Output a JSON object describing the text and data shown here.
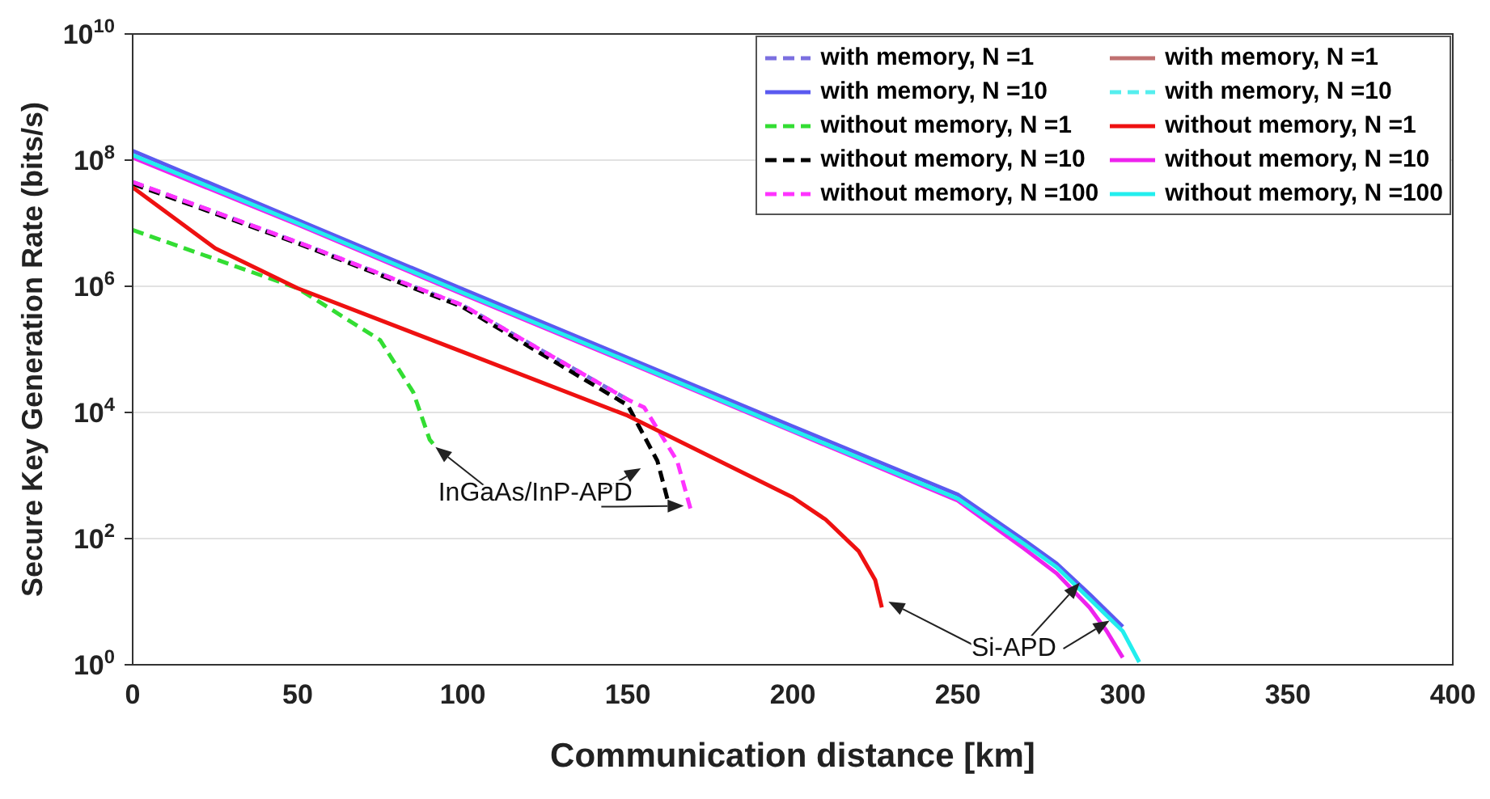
{
  "chart_data": {
    "type": "line",
    "xlabel": "Communication distance [km]",
    "ylabel": "Secure Key Generation Rate (bits/s)",
    "log": "y",
    "grid": true,
    "legend": "top right",
    "xlim": [
      0,
      400
    ],
    "xticks": [
      0,
      50,
      100,
      150,
      200,
      250,
      300,
      350,
      400
    ],
    "ylim": [
      1,
      10000000000
    ],
    "yticks": [
      {
        "value": 1,
        "label": "10$^{0}$"
      },
      {
        "value": 100,
        "label": "10$^{2}$"
      },
      {
        "value": 10000,
        "label": "10$^{4}$"
      },
      {
        "value": 1000000,
        "label": "10$^{6}$"
      },
      {
        "value": 100000000,
        "label": "10$^{8}$"
      },
      {
        "value": 10000000000,
        "label": "10$^{10}$"
      }
    ],
    "annotations": [
      {
        "text": "InGaAs/InP-APD",
        "x": 91,
        "y": 3200
      },
      {
        "text": "Si-APD",
        "x": 287,
        "y": 20
      }
    ],
    "series": [
      {
        "name": "with memory, N =1",
        "color": "#7b6fe0",
        "line_style": "dashed",
        "x": [
          0,
          50,
          100,
          150
        ],
        "values": [
          45000000,
          5000000,
          500000,
          16000
        ]
      },
      {
        "name": "with memory, N =10",
        "color": "#5a5af0",
        "line_style": "solid",
        "x": [
          0,
          100,
          200,
          250,
          270,
          280,
          290,
          300
        ],
        "values": [
          140000000,
          900000,
          6000,
          500,
          95,
          40,
          13,
          4
        ]
      },
      {
        "name": "without memory, N =1",
        "color": "#33dd33",
        "line_style": "dashed",
        "x": [
          0,
          25,
          50,
          75,
          85,
          90,
          91
        ],
        "values": [
          7800000,
          2700000,
          930000,
          140000,
          21000,
          3700,
          3200
        ]
      },
      {
        "name": "without memory, N =10",
        "color": "#000000",
        "line_style": "dashed",
        "x": [
          0,
          50,
          100,
          150,
          155,
          159,
          162
        ],
        "values": [
          42000000,
          4800000,
          470000,
          13000,
          4200,
          1700,
          430
        ]
      },
      {
        "name": "without memory, N =100",
        "color": "#ff33ff",
        "line_style": "dashed",
        "x": [
          0,
          50,
          100,
          150,
          155,
          165,
          169
        ],
        "values": [
          45000000,
          5000000,
          500000,
          16000,
          12000,
          1700,
          300
        ]
      },
      {
        "name": "with memory, N =1",
        "color": "#c07070",
        "line_style": "solid"
      },
      {
        "name": "with memory, N =10",
        "color": "#55eeee",
        "line_style": "dashed"
      },
      {
        "name": "without memory, N =1",
        "color": "#ee1111",
        "line_style": "solid",
        "x": [
          0,
          25,
          50,
          100,
          150,
          200,
          210,
          220,
          225,
          227
        ],
        "values": [
          37000000,
          4000000,
          930000,
          91000,
          8900,
          450,
          200,
          63,
          22,
          8.1
        ]
      },
      {
        "name": "without memory, N =10",
        "color": "#ee22ee",
        "line_style": "solid",
        "x": [
          0,
          50,
          100,
          150,
          200,
          250,
          270,
          280,
          290,
          295,
          300
        ],
        "values": [
          110000000,
          9500000,
          750000,
          62000,
          5000,
          400,
          70,
          28,
          8,
          3.5,
          1.3
        ]
      },
      {
        "name": "without memory, N =100",
        "color": "#22eeee",
        "line_style": "solid",
        "x": [
          0,
          50,
          100,
          150,
          200,
          250,
          270,
          280,
          290,
          300,
          305
        ],
        "values": [
          120000000,
          10000000,
          790000,
          65000,
          5200,
          430,
          83,
          35,
          11,
          3.4,
          1.1
        ]
      }
    ]
  }
}
